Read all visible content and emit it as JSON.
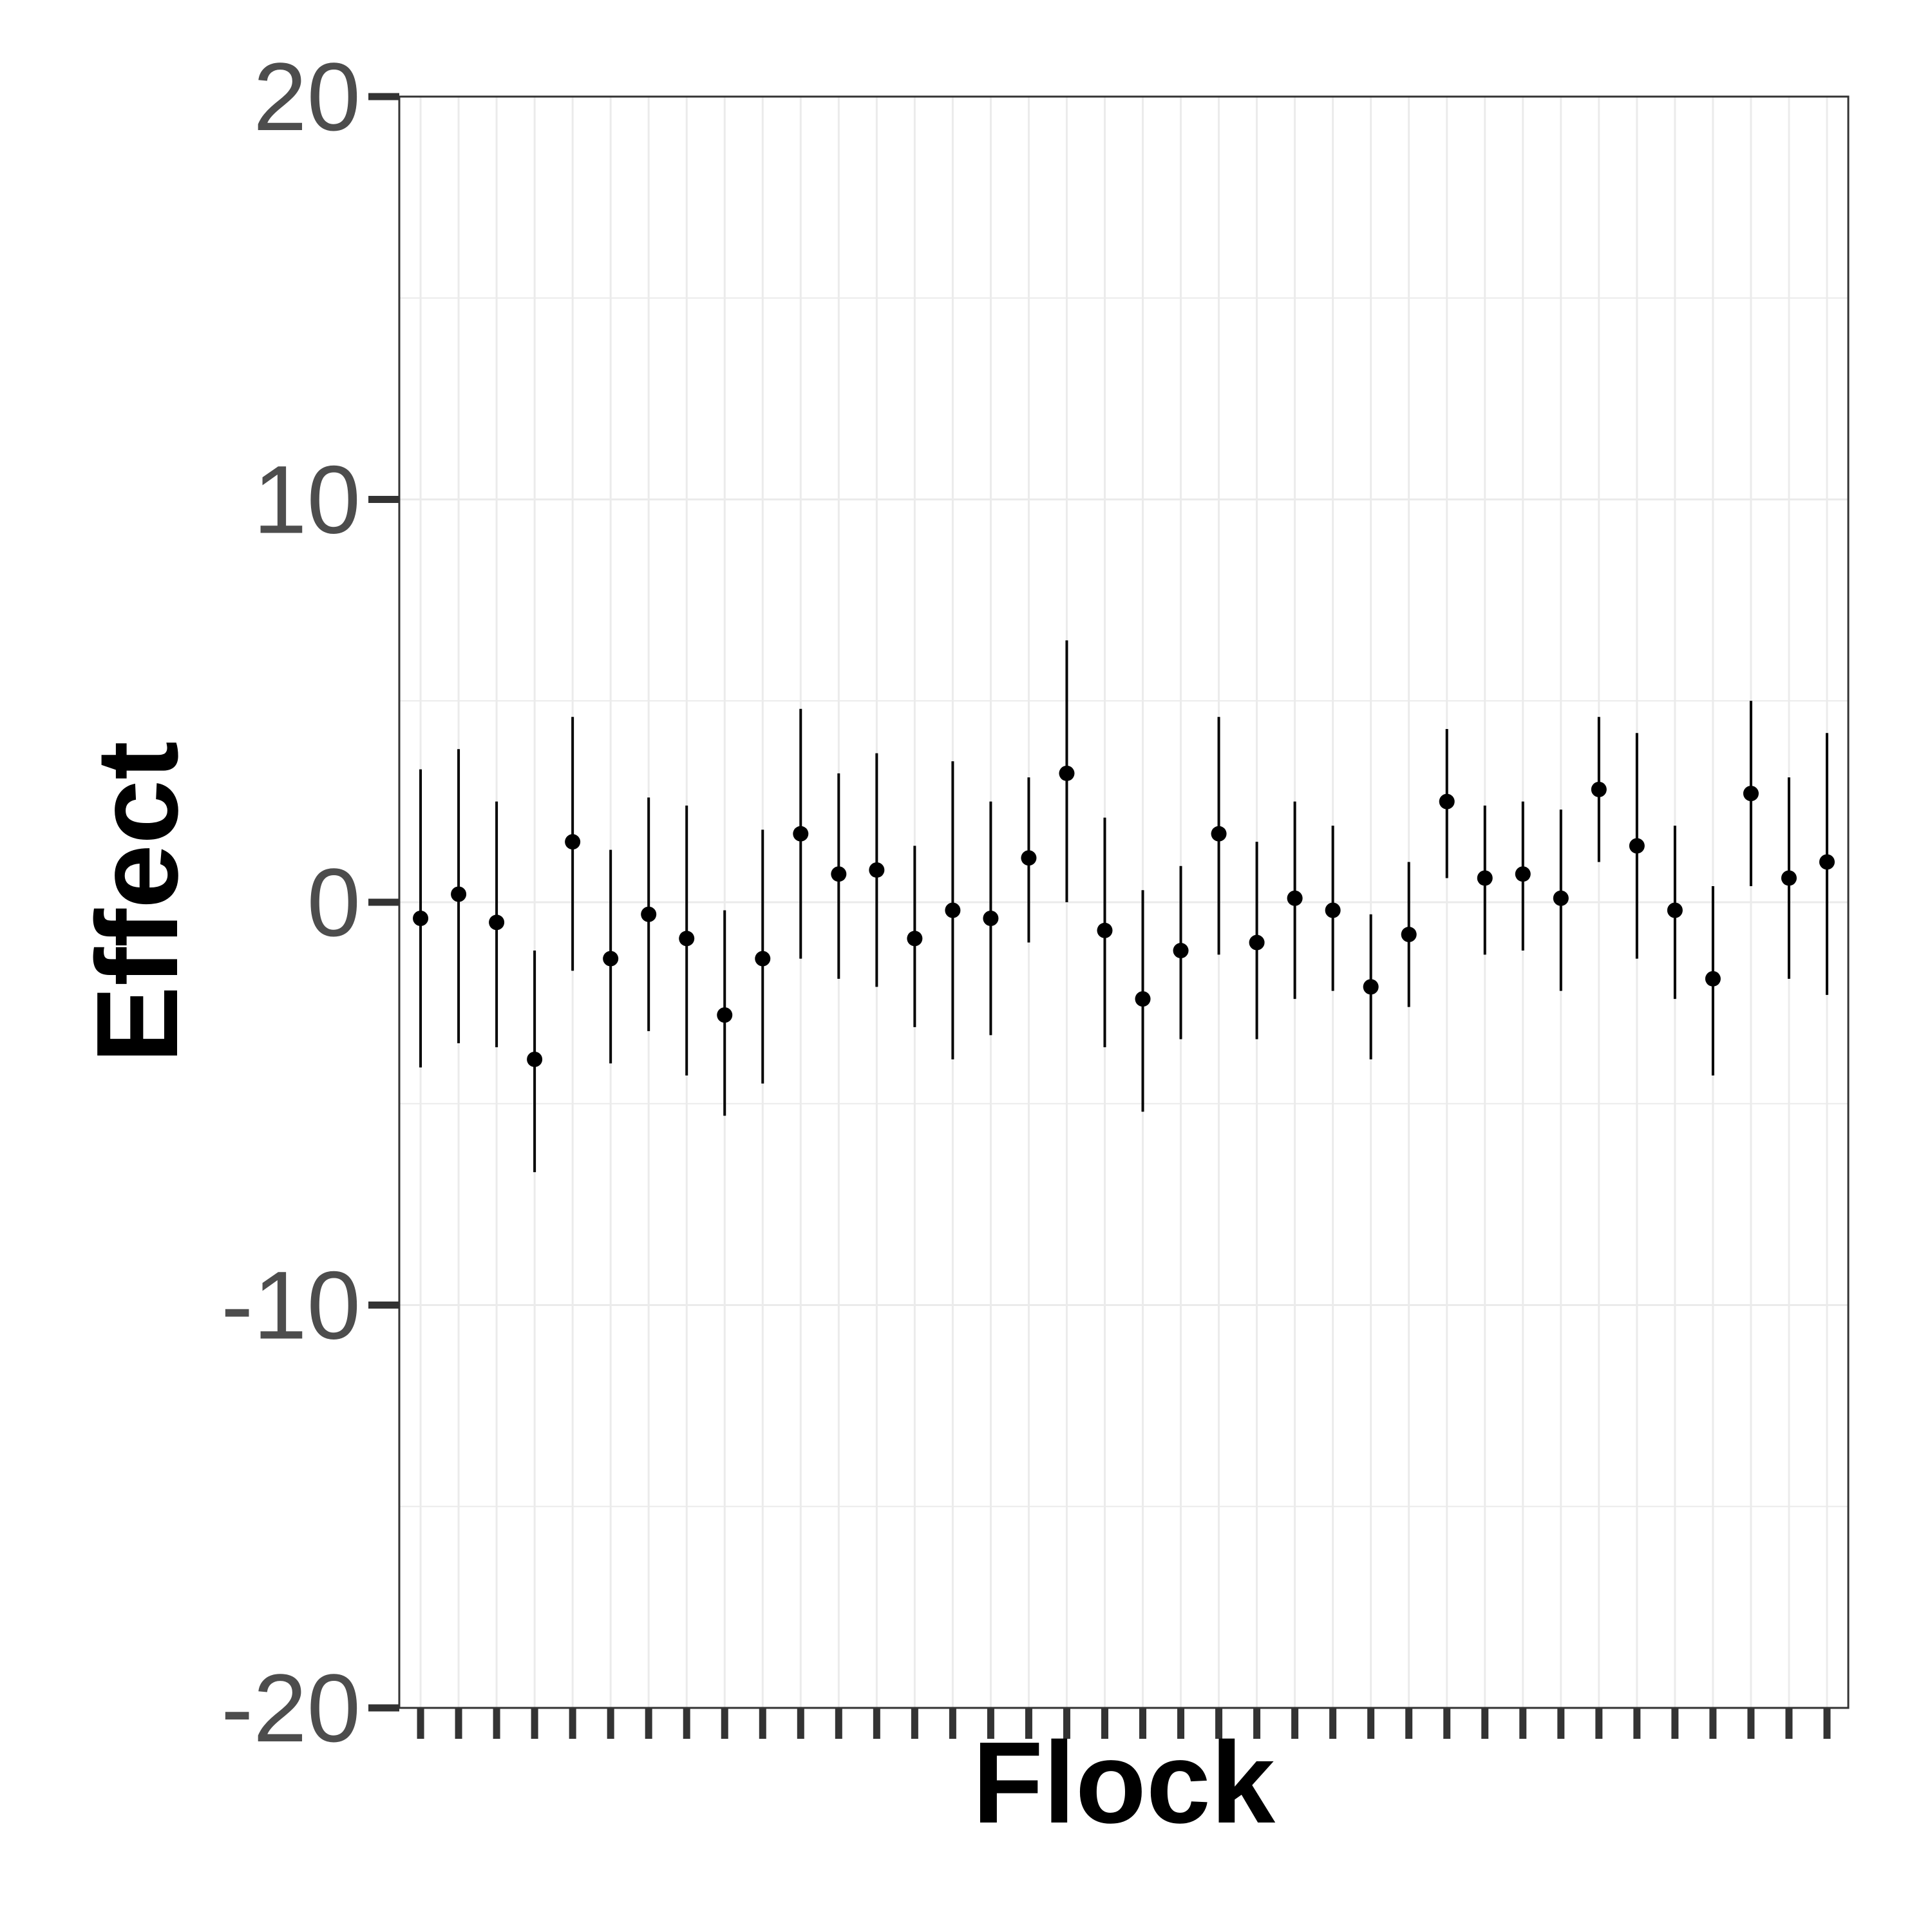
{
  "chart_data": {
    "type": "scatter",
    "subtype": "point-range",
    "title": "",
    "xlabel": "Flock",
    "ylabel": "Effect",
    "ylim": [
      -20,
      20
    ],
    "yticks": [
      -20,
      -10,
      0,
      10,
      20
    ],
    "x_tick_labels_shown": false,
    "grid": true,
    "legend": "none",
    "colors": {
      "points": "#000000",
      "grid": "#ebebeb",
      "tick_text": "#4d4d4d",
      "axis_ticks": "#333333",
      "panel_border": "#333333"
    },
    "points": [
      {
        "y": -0.4,
        "lower": -4.1,
        "upper": 3.3
      },
      {
        "y": 0.2,
        "lower": -3.5,
        "upper": 3.8
      },
      {
        "y": -0.5,
        "lower": -3.6,
        "upper": 2.5
      },
      {
        "y": -3.9,
        "lower": -6.7,
        "upper": -1.2
      },
      {
        "y": 1.5,
        "lower": -1.7,
        "upper": 4.6
      },
      {
        "y": -1.4,
        "lower": -4.0,
        "upper": 1.3
      },
      {
        "y": -0.3,
        "lower": -3.2,
        "upper": 2.6
      },
      {
        "y": -0.9,
        "lower": -4.3,
        "upper": 2.4
      },
      {
        "y": -2.8,
        "lower": -5.3,
        "upper": -0.2
      },
      {
        "y": -1.4,
        "lower": -4.5,
        "upper": 1.8
      },
      {
        "y": 1.7,
        "lower": -1.4,
        "upper": 4.8
      },
      {
        "y": 0.7,
        "lower": -1.9,
        "upper": 3.2
      },
      {
        "y": 0.8,
        "lower": -2.1,
        "upper": 3.7
      },
      {
        "y": -0.9,
        "lower": -3.1,
        "upper": 1.4
      },
      {
        "y": -0.2,
        "lower": -3.9,
        "upper": 3.5
      },
      {
        "y": -0.4,
        "lower": -3.3,
        "upper": 2.5
      },
      {
        "y": 1.1,
        "lower": -1.0,
        "upper": 3.1
      },
      {
        "y": 3.2,
        "lower": 0.0,
        "upper": 6.5
      },
      {
        "y": -0.7,
        "lower": -3.6,
        "upper": 2.1
      },
      {
        "y": -2.4,
        "lower": -5.2,
        "upper": 0.3
      },
      {
        "y": -1.2,
        "lower": -3.4,
        "upper": 0.9
      },
      {
        "y": 1.7,
        "lower": -1.3,
        "upper": 4.6
      },
      {
        "y": -1.0,
        "lower": -3.4,
        "upper": 1.5
      },
      {
        "y": 0.1,
        "lower": -2.4,
        "upper": 2.5
      },
      {
        "y": -0.2,
        "lower": -2.2,
        "upper": 1.9
      },
      {
        "y": -2.1,
        "lower": -3.9,
        "upper": -0.3
      },
      {
        "y": -0.8,
        "lower": -2.6,
        "upper": 1.0
      },
      {
        "y": 2.5,
        "lower": 0.6,
        "upper": 4.3
      },
      {
        "y": 0.6,
        "lower": -1.3,
        "upper": 2.4
      },
      {
        "y": 0.7,
        "lower": -1.2,
        "upper": 2.5
      },
      {
        "y": 0.1,
        "lower": -2.2,
        "upper": 2.3
      },
      {
        "y": 2.8,
        "lower": 1.0,
        "upper": 4.6
      },
      {
        "y": 1.4,
        "lower": -1.4,
        "upper": 4.2
      },
      {
        "y": -0.2,
        "lower": -2.4,
        "upper": 1.9
      },
      {
        "y": -1.9,
        "lower": -4.3,
        "upper": 0.4
      },
      {
        "y": 2.7,
        "lower": 0.4,
        "upper": 5.0
      },
      {
        "y": 0.6,
        "lower": -1.9,
        "upper": 3.1
      },
      {
        "y": 1.0,
        "lower": -2.3,
        "upper": 4.2
      }
    ]
  }
}
